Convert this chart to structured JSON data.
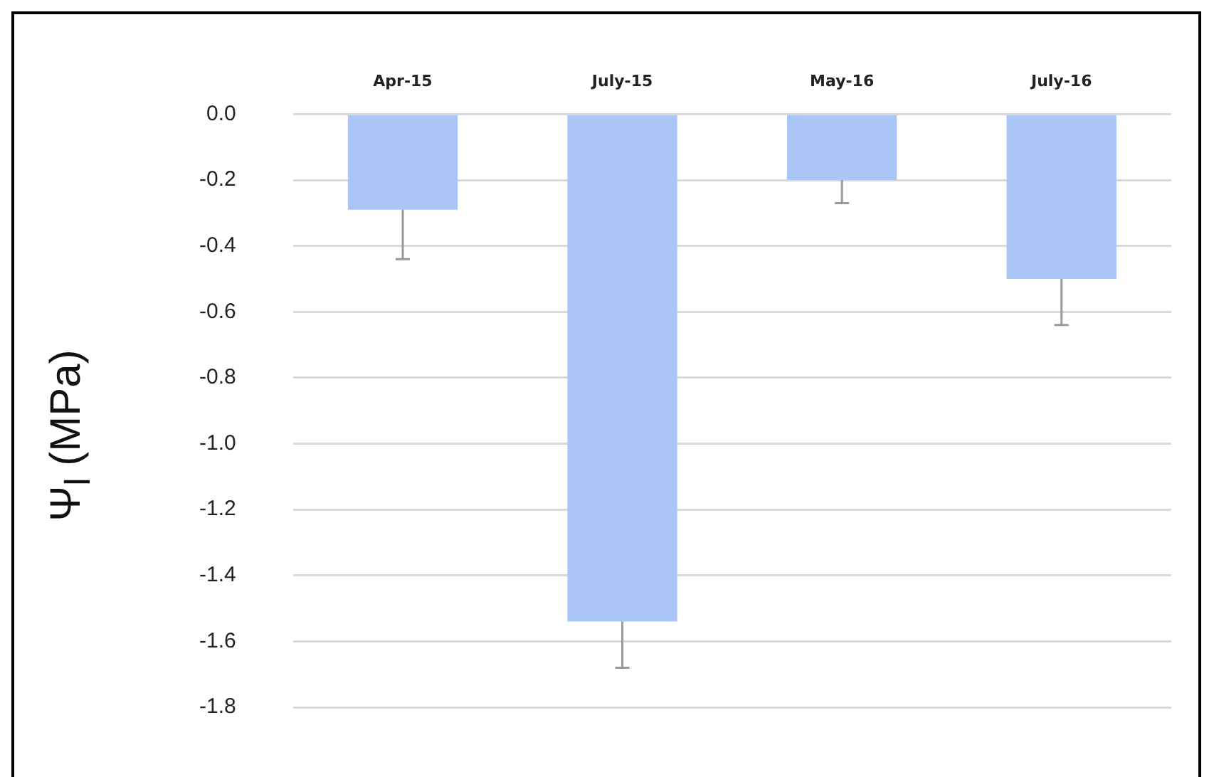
{
  "chart_data": {
    "type": "bar",
    "ylabel": "Ψ$_{l}$ (MPa)",
    "categories": [
      "Apr-15",
      "July-15",
      "May-16",
      "July-16"
    ],
    "values": [
      -0.29,
      -1.54,
      -0.2,
      -0.5
    ],
    "errors": [
      [
        -0.44,
        -0.29
      ],
      [
        -1.68,
        -1.54
      ],
      [
        -0.27,
        -0.2
      ],
      [
        -0.64,
        -0.5
      ]
    ],
    "color": "#a9c6f7",
    "ylim": [
      -1.8,
      0
    ],
    "yticks": [
      {
        "value": 0,
        "label": "0.0"
      },
      -0.2,
      -0.4,
      -0.6,
      -0.8,
      {
        "value": -1,
        "label": "-1.0"
      },
      -1.2,
      -1.4,
      -1.6,
      -1.8
    ],
    "grid": "y",
    "legend": false
  }
}
